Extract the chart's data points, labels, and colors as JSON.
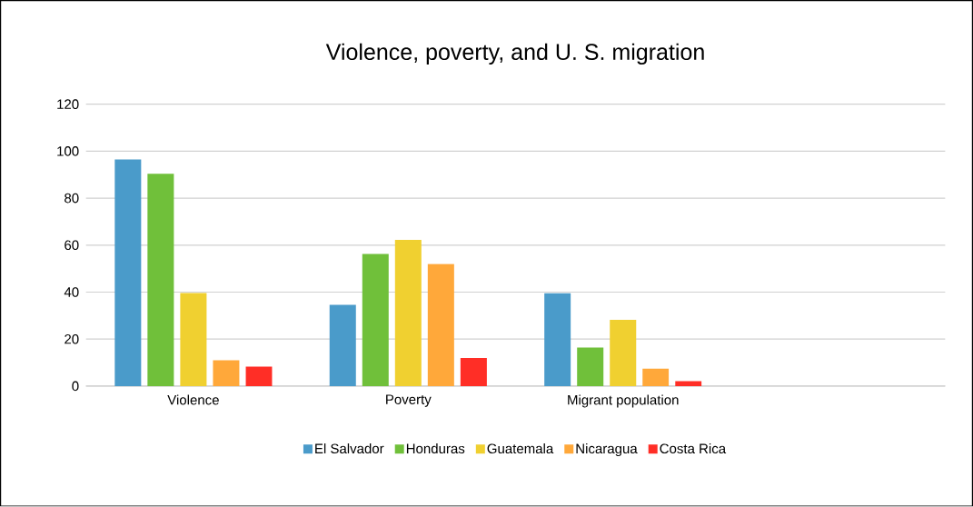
{
  "chart_data": {
    "type": "bar",
    "title": "Violence, poverty, and U. S. migration",
    "categories": [
      "Violence",
      "Poverty",
      "Migrant population",
      null
    ],
    "series": [
      {
        "name": "El Salvador",
        "color": "#4a9bca",
        "values": [
          96.5,
          34.6,
          39.5,
          null
        ]
      },
      {
        "name": "Honduras",
        "color": "#70c03a",
        "values": [
          90.4,
          56.2,
          16.4,
          null
        ]
      },
      {
        "name": "Guatemala",
        "color": "#f0d030",
        "values": [
          39.6,
          62.2,
          28.2,
          null
        ]
      },
      {
        "name": "Nicaragua",
        "color": "#ffa83a",
        "values": [
          11,
          52,
          7.4,
          null
        ]
      },
      {
        "name": "Costa Rica",
        "color": "#ff2e26",
        "values": [
          8.3,
          12,
          2.1,
          null
        ]
      }
    ],
    "ylim": [
      0,
      120
    ],
    "yticks": [
      0,
      20,
      40,
      60,
      80,
      100,
      120
    ],
    "grid": "y",
    "legend": "bottom"
  }
}
